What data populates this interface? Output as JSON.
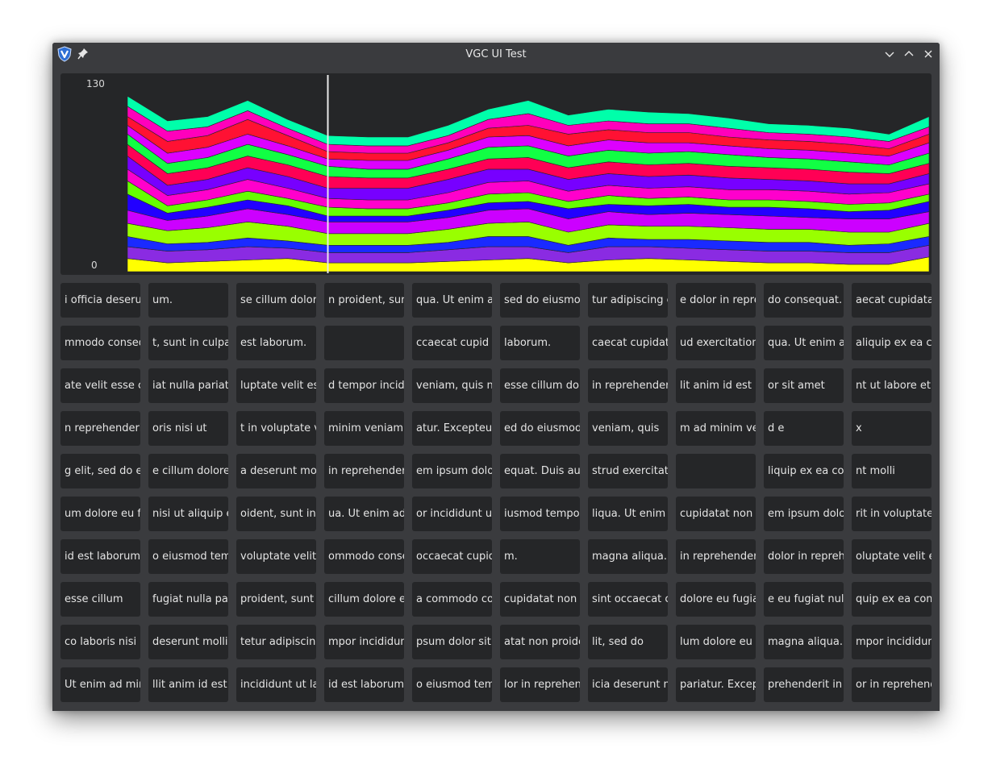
{
  "window": {
    "title": "VGC UI Test",
    "icons": {
      "app": "vgc-logo-icon",
      "pin": "pin-icon",
      "minimize": "chevron-down-icon",
      "maximize": "chevron-up-icon",
      "close": "close-icon"
    }
  },
  "chart_data": {
    "type": "area",
    "stacked": true,
    "ylim": [
      0,
      130
    ],
    "yticks": [
      "130",
      "0"
    ],
    "cursor_x": 5,
    "x": [
      0,
      1,
      2,
      3,
      4,
      5,
      6,
      7,
      8,
      9,
      10,
      11,
      12,
      13,
      14,
      15,
      16,
      17,
      18,
      19,
      20
    ],
    "series": [
      {
        "color": "#ffff00",
        "values": [
          9,
          6,
          7,
          8,
          9,
          6,
          6,
          6,
          7,
          8,
          9,
          6,
          8,
          9,
          8,
          7,
          6,
          6,
          5,
          5,
          10
        ]
      },
      {
        "color": "#8a2be2",
        "values": [
          8,
          8,
          8,
          9,
          7,
          7,
          7,
          7,
          8,
          9,
          8,
          7,
          9,
          8,
          8,
          8,
          8,
          8,
          8,
          8,
          8
        ]
      },
      {
        "color": "#1a2aff",
        "values": [
          7,
          5,
          5,
          6,
          5,
          5,
          5,
          5,
          5,
          7,
          7,
          5,
          6,
          5,
          6,
          6,
          6,
          6,
          5,
          6,
          6
        ]
      },
      {
        "color": "#99ff00",
        "values": [
          9,
          9,
          10,
          11,
          10,
          8,
          8,
          8,
          9,
          9,
          10,
          9,
          9,
          9,
          9,
          9,
          9,
          9,
          9,
          8,
          9
        ]
      },
      {
        "color": "#cc00ff",
        "values": [
          9,
          7,
          8,
          9,
          8,
          8,
          8,
          8,
          8,
          9,
          9,
          9,
          9,
          8,
          9,
          9,
          9,
          8,
          9,
          9,
          8
        ]
      },
      {
        "color": "#2200ff",
        "values": [
          11,
          5,
          6,
          6,
          6,
          4,
          4,
          4,
          5,
          5,
          5,
          7,
          5,
          6,
          6,
          5,
          6,
          6,
          5,
          6,
          7
        ]
      },
      {
        "color": "#66ff00",
        "values": [
          9,
          5,
          5,
          6,
          5,
          6,
          5,
          5,
          5,
          6,
          6,
          5,
          6,
          5,
          5,
          5,
          5,
          5,
          5,
          5,
          5
        ]
      },
      {
        "color": "#ff00cc",
        "values": [
          8,
          7,
          7,
          8,
          7,
          6,
          6,
          6,
          7,
          8,
          8,
          7,
          7,
          7,
          7,
          7,
          7,
          7,
          7,
          7,
          7
        ]
      },
      {
        "color": "#7700ff",
        "values": [
          9,
          7,
          7,
          8,
          8,
          7,
          8,
          8,
          9,
          9,
          8,
          8,
          8,
          8,
          8,
          8,
          7,
          7,
          7,
          6,
          7
        ]
      },
      {
        "color": "#ff0055",
        "values": [
          8,
          8,
          8,
          8,
          8,
          8,
          7,
          7,
          7,
          7,
          8,
          8,
          8,
          8,
          8,
          8,
          8,
          8,
          8,
          7,
          7
        ]
      },
      {
        "color": "#11ff44",
        "values": [
          7,
          7,
          7,
          8,
          7,
          7,
          6,
          6,
          7,
          8,
          8,
          8,
          8,
          8,
          8,
          8,
          7,
          7,
          7,
          6,
          7
        ]
      },
      {
        "color": "#dd00ff",
        "values": [
          6,
          7,
          7,
          7,
          6,
          5,
          6,
          6,
          6,
          7,
          7,
          7,
          7,
          7,
          6,
          6,
          6,
          6,
          6,
          6,
          7
        ]
      },
      {
        "color": "#ff1133",
        "values": [
          6,
          8,
          8,
          10,
          7,
          5,
          5,
          5,
          5,
          6,
          7,
          8,
          7,
          7,
          7,
          6,
          6,
          6,
          6,
          5,
          6
        ]
      },
      {
        "color": "#ff00bb",
        "values": [
          7,
          7,
          6,
          6,
          5,
          5,
          5,
          5,
          5,
          6,
          8,
          6,
          6,
          6,
          6,
          6,
          5,
          5,
          5,
          5,
          5
        ]
      },
      {
        "color": "#00ffaa",
        "values": [
          7,
          7,
          7,
          7,
          6,
          6,
          6,
          6,
          7,
          7,
          9,
          7,
          8,
          8,
          7,
          7,
          6,
          6,
          6,
          5,
          7
        ]
      }
    ]
  },
  "grid": [
    [
      "i officia deserunt",
      "um.",
      "se cillum dolore",
      "n proident, sunt",
      "qua. Ut enim ad",
      "sed do eiusmod",
      "tur adipiscing el",
      "e dolor in repre",
      "do consequat. Du",
      "aecat cupidatat"
    ],
    [
      "mmodo consequ",
      "t, sunt in culpa",
      "est laborum.",
      "",
      "ccaecat cupid",
      "laborum.",
      "caecat cupidata",
      "ud exercitation",
      "qua. Ut enim ad",
      "aliquip ex ea co"
    ],
    [
      "ate velit esse cil",
      "iat nulla pariatu",
      "luptate velit ess",
      "d tempor incidi",
      "veniam, quis no",
      "esse cillum dol",
      "in reprehenderi",
      "lit anim id est la",
      "or sit amet",
      "nt ut labore et d"
    ],
    [
      "n reprehenderit",
      "oris nisi ut",
      "t in voluptate ve",
      "minim veniam,",
      "atur. Excepteur",
      "ed do eiusmod",
      "veniam, quis",
      "m ad minim ver",
      "d e",
      "x"
    ],
    [
      "g elit, sed do eiu",
      "e cillum dolore",
      "a deserunt moll",
      "in reprehender",
      "em ipsum dolor",
      "equat. Duis aut",
      "strud exercitatio",
      "",
      "liquip ex ea con",
      "nt molli"
    ],
    [
      "um dolore eu fu",
      "nisi ut aliquip e",
      "oident, sunt in c",
      "ua. Ut enim ad m",
      "or incididunt ut",
      "iusmod tempor",
      "liqua. Ut enim a",
      "cupidatat non p",
      "em ipsum dolor",
      "rit in voluptate v"
    ],
    [
      "id est laborum.",
      "o eiusmod temp",
      "voluptate velit",
      "ommodo conse",
      "occaecat cupid",
      "m.",
      "magna aliqua.",
      "in reprehender",
      "dolor in reprehe",
      "oluptate velit es"
    ],
    [
      "esse cillum",
      "fugiat nulla par",
      "proident, sunt i",
      "cillum dolore e",
      "a commodo con",
      "cupidatat non p",
      "sint occaecat c",
      "dolore eu fugiat",
      "e eu fugiat nulla",
      "quip ex ea comm"
    ],
    [
      "co laboris nisi u",
      "deserunt molli",
      "tetur adipiscing",
      "mpor incididun",
      "psum dolor sit a",
      "atat non proide",
      "lit, sed do",
      "lum dolore eu f",
      "magna aliqua.",
      "mpor incididun"
    ],
    [
      "Ut enim ad min",
      "llit anim id est l",
      "incididunt ut la",
      "id est laborum.",
      "o eiusmod temp",
      "lor in reprehen",
      "icia deserunt m",
      "pariatur. Except",
      "prehenderit in v",
      "or in reprehend"
    ]
  ]
}
